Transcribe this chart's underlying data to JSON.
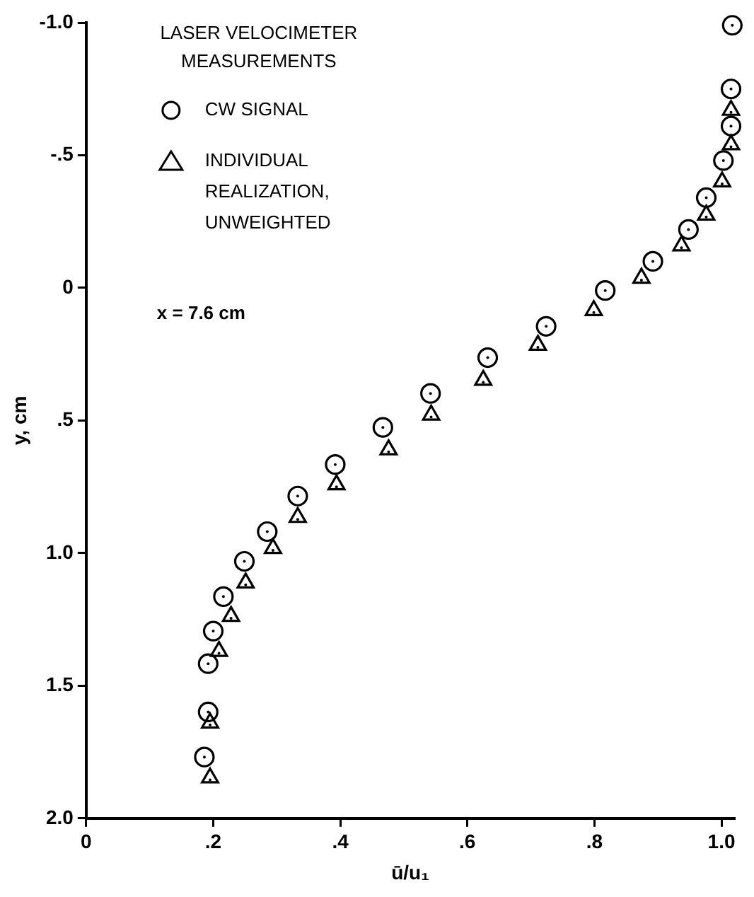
{
  "chart_data": {
    "type": "scatter",
    "legend_title": "LASER VELOCIMETER MEASUREMENTS",
    "legend": "top left",
    "xlabel": "ū/u₁",
    "ylabel": "y, cm",
    "annotations": [
      "x = 7.6 cm"
    ],
    "xlim": [
      0,
      1.02
    ],
    "xticks": [
      0,
      {
        "value": 0.2,
        "label": ".2"
      },
      {
        "value": 0.4,
        "label": ".4"
      },
      {
        "value": 0.6,
        "label": ".6"
      },
      {
        "value": 0.8,
        "label": ".8"
      },
      {
        "value": 1.0,
        "label": "1.0"
      }
    ],
    "ylim": [
      2.0,
      -1.0
    ],
    "yticks": [
      {
        "value": -1.0,
        "label": "-1.0"
      },
      {
        "value": -0.5,
        "label": "-.5"
      },
      0,
      {
        "value": 0.5,
        "label": ".5"
      },
      {
        "value": 1.0,
        "label": "1.0"
      },
      {
        "value": 1.5,
        "label": "1.5"
      },
      {
        "value": 2.0,
        "label": "2.0"
      }
    ],
    "grid": false,
    "series": [
      {
        "name": "CW SIGNAL",
        "color": "#000000",
        "marker": "circle",
        "x": [
          1.017,
          1.015,
          1.015,
          1.003,
          0.976,
          0.948,
          0.892,
          0.817,
          0.724,
          0.632,
          0.542,
          0.467,
          0.392,
          0.333,
          0.285,
          0.249,
          0.216,
          0.2,
          0.192,
          0.192,
          0.186
        ],
        "values": [
          -0.99,
          -0.75,
          -0.61,
          -0.48,
          -0.34,
          -0.22,
          -0.1,
          0.01,
          0.145,
          0.263,
          0.398,
          0.526,
          0.666,
          0.785,
          0.919,
          1.031,
          1.164,
          1.294,
          1.417,
          1.599,
          1.769
        ]
      },
      {
        "name": "INDIVIDUAL REALIZATION, UNWEIGHTED",
        "color": "#000000",
        "marker": "triangle",
        "x": [
          1.015,
          1.015,
          1.001,
          0.976,
          0.937,
          0.874,
          0.799,
          0.711,
          0.625,
          0.543,
          0.476,
          0.394,
          0.333,
          0.294,
          0.251,
          0.228,
          0.209,
          0.195,
          0.195
        ],
        "values": [
          -0.67,
          -0.54,
          -0.4,
          -0.275,
          -0.159,
          -0.037,
          0.085,
          0.216,
          0.348,
          0.479,
          0.61,
          0.742,
          0.865,
          0.982,
          1.112,
          1.238,
          1.37,
          1.64,
          1.847
        ]
      }
    ]
  }
}
